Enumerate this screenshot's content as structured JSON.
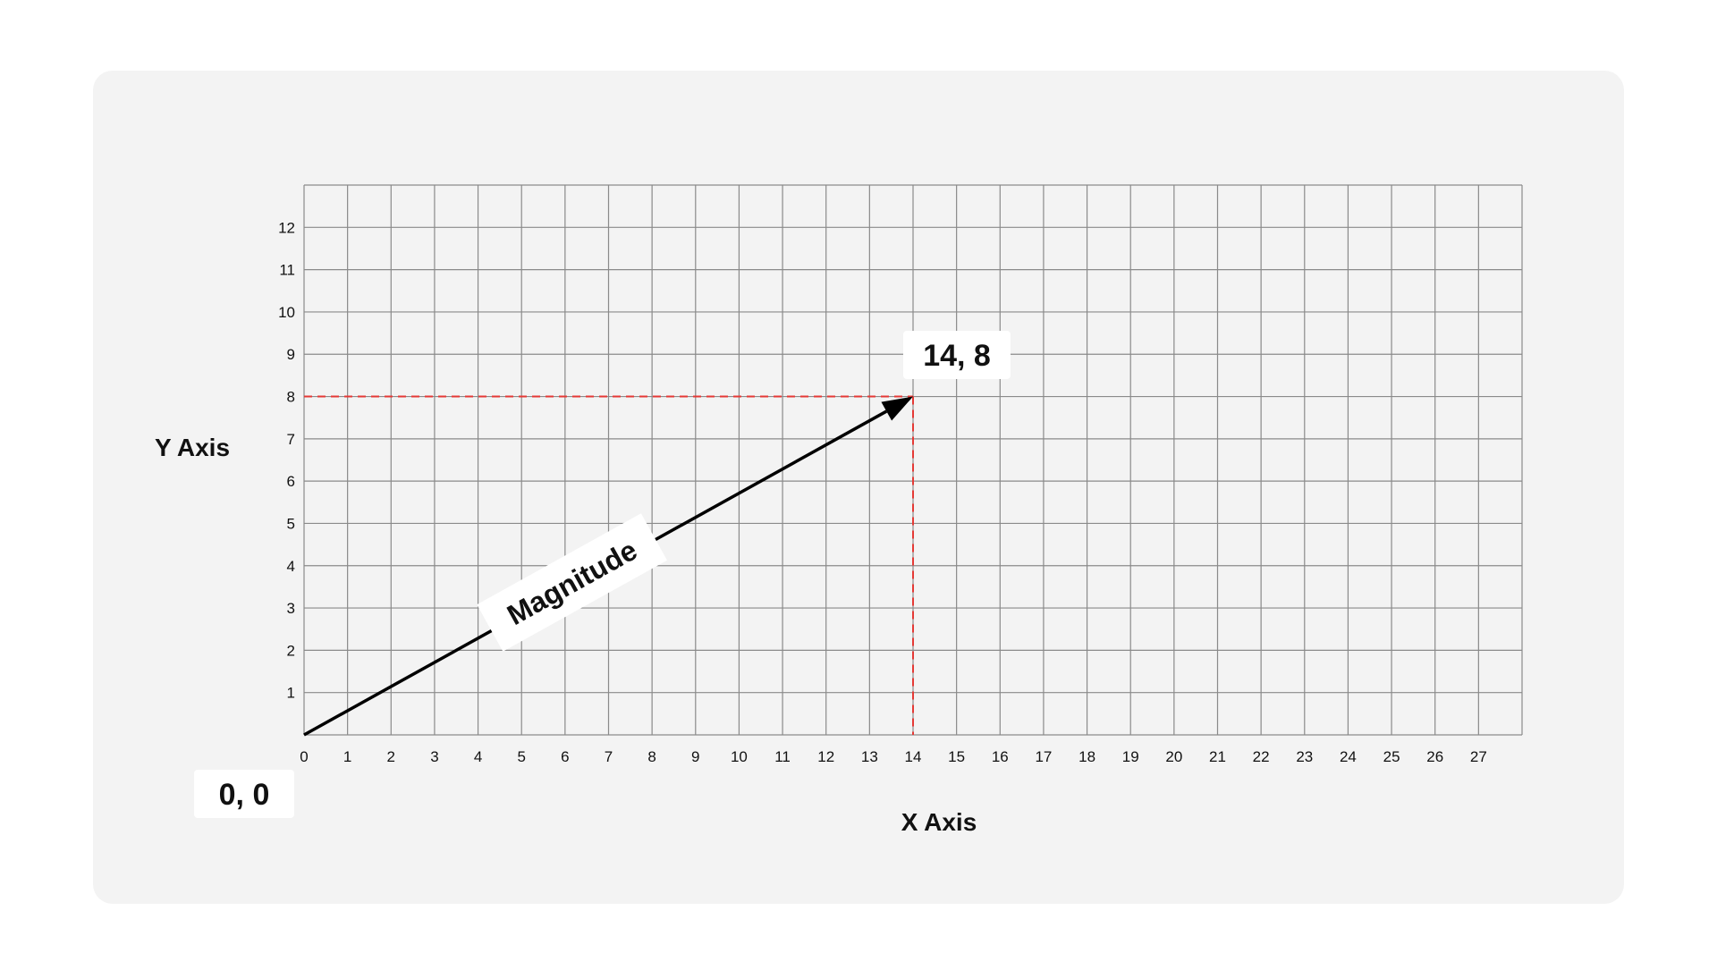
{
  "chart_data": {
    "type": "vector-diagram",
    "xlabel": "X Axis",
    "ylabel": "Y Axis",
    "xlim": [
      0,
      28
    ],
    "ylim": [
      0,
      13
    ],
    "x_ticks": [
      0,
      1,
      2,
      3,
      4,
      5,
      6,
      7,
      8,
      9,
      10,
      11,
      12,
      13,
      14,
      15,
      16,
      17,
      18,
      19,
      20,
      21,
      22,
      23,
      24,
      25,
      26,
      27
    ],
    "y_ticks": [
      1,
      2,
      3,
      4,
      5,
      6,
      7,
      8,
      9,
      10,
      11,
      12
    ],
    "grid": true,
    "vector": {
      "from": [
        0,
        0
      ],
      "to": [
        14,
        8
      ],
      "label": "Magnitude"
    },
    "origin_label": "0, 0",
    "tip_label": "14, 8",
    "colors": {
      "panel": "#f3f3f3",
      "grid": "#8a8a8a",
      "vector": "#000000",
      "guide": "#e53935",
      "callout": "#ffffff"
    }
  }
}
